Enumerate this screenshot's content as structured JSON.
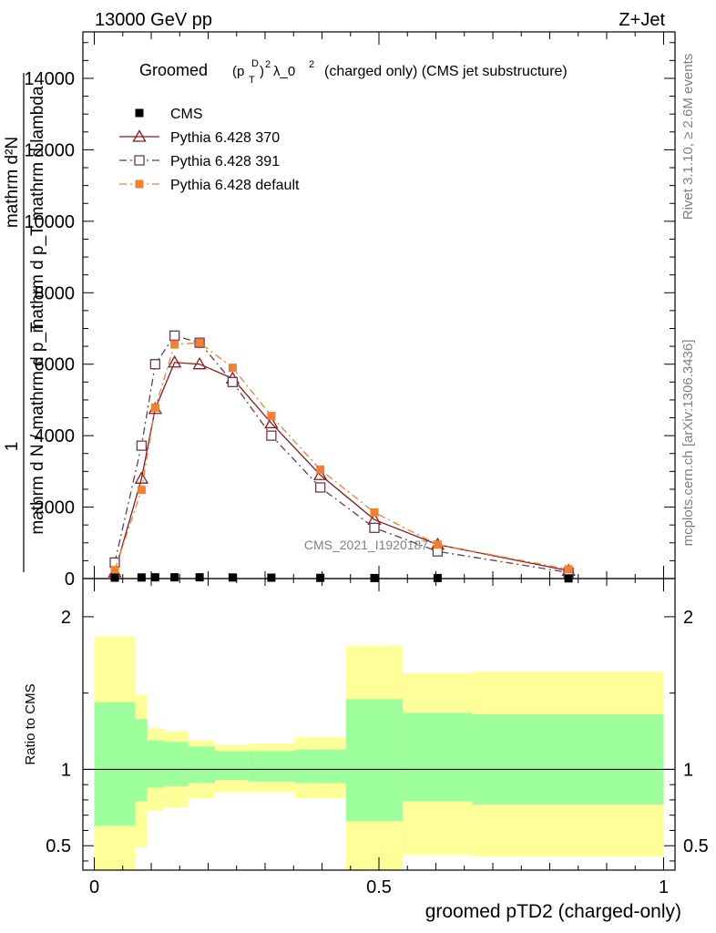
{
  "header": {
    "energy_label": "13000 GeV pp",
    "process_label": "Z+Jet"
  },
  "side_labels": {
    "rivet": "Rivet 3.1.10, ≥ 2.6M events",
    "mcplots": "mcplots.cern.ch [arXiv:1306.3436]"
  },
  "chart_data": [
    {
      "type": "line",
      "title_main": "Groomed",
      "title_rest": "(charged only) (CMS jet substructure)",
      "title_math": {
        "base": "(p",
        "sub": "T",
        "sup": "D",
        "tail": ")",
        "tail_sup": "2",
        "lambda": "λ_0",
        "lambda_sup": "2"
      },
      "ylabel_top": "mathrm d²N",
      "ylabel_mid": "mathrm d p_T mathrm d lambda",
      "ylabel_left": "1",
      "ylabel_bottom": "mathrm d N / mathrm d p_T",
      "ylabel_full": "1 / (mathrm d N / mathrm d p_T) · mathrm d²N / (mathrm d p_T mathrm d lambda)",
      "watermark": "CMS_2021_I1920187",
      "xlim": [
        -0.02,
        1.02
      ],
      "ylim": [
        0,
        15300
      ],
      "yticks": [
        0,
        2000,
        4000,
        6000,
        8000,
        10000,
        12000,
        14000
      ],
      "ytick_labels": [
        "0",
        "2000",
        "4000",
        "6000",
        "8000",
        "10000",
        "12000",
        "14000"
      ],
      "legend_position": "top-left",
      "series": [
        {
          "name": "CMS",
          "color": "#000000",
          "marker": "filled-square",
          "x": [
            0.036,
            0.083,
            0.107,
            0.141,
            0.185,
            0.243,
            0.311,
            0.397,
            0.492,
            0.603,
            0.833
          ],
          "y": [
            25,
            30,
            35,
            35,
            35,
            30,
            25,
            20,
            15,
            15,
            5
          ]
        },
        {
          "name": "Pythia 6.428 370",
          "color": "#8b1a1a",
          "marker": "open-triangle",
          "line": "solid",
          "x": [
            0.036,
            0.083,
            0.107,
            0.141,
            0.185,
            0.243,
            0.311,
            0.397,
            0.492,
            0.603,
            0.833
          ],
          "y": [
            180,
            2800,
            4750,
            6050,
            6000,
            5600,
            4350,
            2900,
            1650,
            950,
            220
          ]
        },
        {
          "name": "Pythia 6.428 391",
          "color": "#6b3a4e",
          "marker": "open-square",
          "line": "dash-dot",
          "x": [
            0.036,
            0.083,
            0.107,
            0.141,
            0.185,
            0.243,
            0.311,
            0.397,
            0.492,
            0.603,
            0.833
          ],
          "y": [
            450,
            3720,
            6000,
            6800,
            6600,
            5500,
            4000,
            2550,
            1420,
            760,
            170
          ]
        },
        {
          "name": "Pythia 6.428 default",
          "color": "#f28030",
          "marker": "filled-square",
          "line": "dash-dot",
          "x": [
            0.036,
            0.083,
            0.107,
            0.141,
            0.185,
            0.243,
            0.311,
            0.397,
            0.492,
            0.603,
            0.833
          ],
          "y": [
            240,
            2480,
            4780,
            6550,
            6600,
            5900,
            4550,
            3050,
            1850,
            950,
            260
          ]
        }
      ]
    },
    {
      "type": "area",
      "ylabel": "Ratio to CMS",
      "xlabel": "groomed pTD2 (charged-only)",
      "xlim": [
        -0.02,
        1.02
      ],
      "ylim": [
        0.34,
        2.25
      ],
      "xticks": [
        0,
        0.5,
        1
      ],
      "xtick_labels": [
        "0",
        "0.5",
        "1"
      ],
      "yticks": [
        0.5,
        1,
        2
      ],
      "ytick_labels": [
        "0.5",
        "1",
        "2"
      ],
      "reference_line": 1,
      "band_colors": {
        "stat": "#9cff9c",
        "total": "#ffff99"
      },
      "bins": [
        {
          "x0": 0.0,
          "x1": 0.072,
          "green": [
            0.63,
            1.44
          ],
          "yellow": [
            0.0,
            1.87
          ]
        },
        {
          "x0": 0.072,
          "x1": 0.093,
          "green": [
            0.79,
            1.33
          ],
          "yellow": [
            0.49,
            1.49
          ]
        },
        {
          "x0": 0.093,
          "x1": 0.122,
          "green": [
            0.88,
            1.19
          ],
          "yellow": [
            0.73,
            1.27
          ]
        },
        {
          "x0": 0.122,
          "x1": 0.165,
          "green": [
            0.89,
            1.18
          ],
          "yellow": [
            0.75,
            1.25
          ]
        },
        {
          "x0": 0.165,
          "x1": 0.212,
          "green": [
            0.91,
            1.15
          ],
          "yellow": [
            0.81,
            1.19
          ]
        },
        {
          "x0": 0.212,
          "x1": 0.27,
          "green": [
            0.93,
            1.12
          ],
          "yellow": [
            0.85,
            1.16
          ]
        },
        {
          "x0": 0.27,
          "x1": 0.352,
          "green": [
            0.92,
            1.12
          ],
          "yellow": [
            0.85,
            1.17
          ]
        },
        {
          "x0": 0.352,
          "x1": 0.442,
          "green": [
            0.91,
            1.13
          ],
          "yellow": [
            0.81,
            1.21
          ]
        },
        {
          "x0": 0.442,
          "x1": 0.542,
          "green": [
            0.66,
            1.46
          ],
          "yellow": [
            0.0,
            1.81
          ]
        },
        {
          "x0": 0.542,
          "x1": 0.664,
          "green": [
            0.79,
            1.37
          ],
          "yellow": [
            0.44,
            1.63
          ]
        },
        {
          "x0": 0.664,
          "x1": 1.0,
          "green": [
            0.77,
            1.36
          ],
          "yellow": [
            0.43,
            1.64
          ]
        }
      ]
    }
  ]
}
